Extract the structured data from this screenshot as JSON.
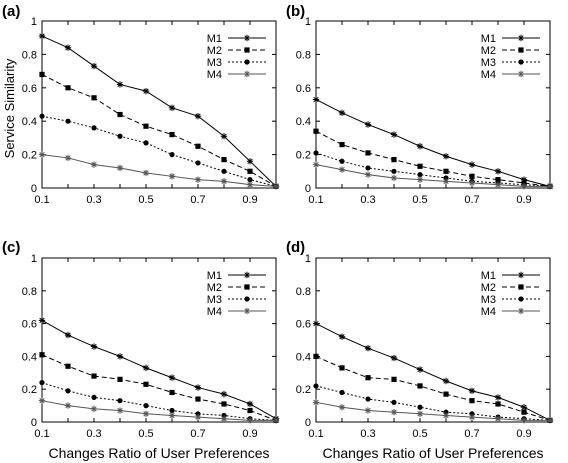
{
  "chart_data": [
    {
      "type": "line",
      "panel_label": "(a)",
      "ylabel": "Service Similarity",
      "xlabel": "",
      "x": [
        0.1,
        0.2,
        0.3,
        0.4,
        0.5,
        0.6,
        0.7,
        0.8,
        0.9,
        1.0
      ],
      "xticks": [
        "0.1",
        "0.3",
        "0.5",
        "0.7",
        "0.9"
      ],
      "yticks": [
        "0",
        "0.2",
        "0.4",
        "0.6",
        "0.8",
        "1"
      ],
      "xlim": [
        0.1,
        1.0
      ],
      "ylim": [
        0,
        1
      ],
      "legend_position": "top-right",
      "series": [
        {
          "name": "M1",
          "values": [
            0.91,
            0.84,
            0.73,
            0.62,
            0.58,
            0.48,
            0.43,
            0.31,
            0.16,
            0.01
          ]
        },
        {
          "name": "M2",
          "values": [
            0.68,
            0.6,
            0.54,
            0.44,
            0.37,
            0.32,
            0.25,
            0.17,
            0.1,
            0.01
          ]
        },
        {
          "name": "M3",
          "values": [
            0.43,
            0.4,
            0.36,
            0.31,
            0.27,
            0.2,
            0.15,
            0.1,
            0.05,
            0.01
          ]
        },
        {
          "name": "M4",
          "values": [
            0.2,
            0.18,
            0.14,
            0.12,
            0.09,
            0.07,
            0.05,
            0.04,
            0.02,
            0.01
          ]
        }
      ]
    },
    {
      "type": "line",
      "panel_label": "(b)",
      "ylabel": "",
      "xlabel": "",
      "x": [
        0.1,
        0.2,
        0.3,
        0.4,
        0.5,
        0.6,
        0.7,
        0.8,
        0.9,
        1.0
      ],
      "xticks": [
        "0.1",
        "0.3",
        "0.5",
        "0.7",
        "0.9"
      ],
      "yticks": [
        "0",
        "0.2",
        "0.4",
        "0.6",
        "0.8",
        "1"
      ],
      "xlim": [
        0.1,
        1.0
      ],
      "ylim": [
        0,
        1
      ],
      "legend_position": "top-right",
      "series": [
        {
          "name": "M1",
          "values": [
            0.53,
            0.45,
            0.38,
            0.32,
            0.25,
            0.19,
            0.14,
            0.1,
            0.05,
            0.01
          ]
        },
        {
          "name": "M2",
          "values": [
            0.34,
            0.26,
            0.21,
            0.17,
            0.13,
            0.1,
            0.07,
            0.05,
            0.03,
            0.01
          ]
        },
        {
          "name": "M3",
          "values": [
            0.21,
            0.16,
            0.12,
            0.1,
            0.08,
            0.06,
            0.04,
            0.03,
            0.02,
            0.01
          ]
        },
        {
          "name": "M4",
          "values": [
            0.14,
            0.11,
            0.08,
            0.06,
            0.05,
            0.04,
            0.03,
            0.02,
            0.01,
            0.01
          ]
        }
      ]
    },
    {
      "type": "line",
      "panel_label": "(c)",
      "ylabel": "",
      "xlabel": "Changes Ratio of User Preferences",
      "x": [
        0.1,
        0.2,
        0.3,
        0.4,
        0.5,
        0.6,
        0.7,
        0.8,
        0.9,
        1.0
      ],
      "xticks": [
        "0.1",
        "0.3",
        "0.5",
        "0.7",
        "0.9"
      ],
      "yticks": [
        "0",
        "0.2",
        "0.4",
        "0.6",
        "0.8",
        "1"
      ],
      "xlim": [
        0.1,
        1.0
      ],
      "ylim": [
        0,
        1
      ],
      "legend_position": "top-right",
      "series": [
        {
          "name": "M1",
          "values": [
            0.62,
            0.53,
            0.46,
            0.4,
            0.33,
            0.27,
            0.21,
            0.17,
            0.11,
            0.02
          ]
        },
        {
          "name": "M2",
          "values": [
            0.41,
            0.34,
            0.28,
            0.26,
            0.23,
            0.18,
            0.14,
            0.11,
            0.07,
            0.01
          ]
        },
        {
          "name": "M3",
          "values": [
            0.24,
            0.19,
            0.15,
            0.13,
            0.1,
            0.07,
            0.05,
            0.04,
            0.02,
            0.01
          ]
        },
        {
          "name": "M4",
          "values": [
            0.13,
            0.1,
            0.08,
            0.07,
            0.05,
            0.04,
            0.03,
            0.02,
            0.01,
            0.01
          ]
        }
      ]
    },
    {
      "type": "line",
      "panel_label": "(d)",
      "ylabel": "",
      "xlabel": "Changes Ratio of User Preferences",
      "x": [
        0.1,
        0.2,
        0.3,
        0.4,
        0.5,
        0.6,
        0.7,
        0.8,
        0.9,
        1.0
      ],
      "xticks": [
        "0.1",
        "0.3",
        "0.5",
        "0.7",
        "0.9"
      ],
      "yticks": [
        "0",
        "0.2",
        "0.4",
        "0.6",
        "0.8",
        "1"
      ],
      "xlim": [
        0.1,
        1.0
      ],
      "ylim": [
        0,
        1
      ],
      "legend_position": "top-right",
      "series": [
        {
          "name": "M1",
          "values": [
            0.6,
            0.52,
            0.45,
            0.39,
            0.32,
            0.25,
            0.19,
            0.15,
            0.09,
            0.01
          ]
        },
        {
          "name": "M2",
          "values": [
            0.4,
            0.33,
            0.27,
            0.26,
            0.22,
            0.17,
            0.13,
            0.11,
            0.06,
            0.01
          ]
        },
        {
          "name": "M3",
          "values": [
            0.22,
            0.18,
            0.14,
            0.12,
            0.09,
            0.06,
            0.05,
            0.03,
            0.02,
            0.01
          ]
        },
        {
          "name": "M4",
          "values": [
            0.12,
            0.09,
            0.07,
            0.06,
            0.05,
            0.04,
            0.03,
            0.02,
            0.01,
            0.01
          ]
        }
      ]
    }
  ]
}
